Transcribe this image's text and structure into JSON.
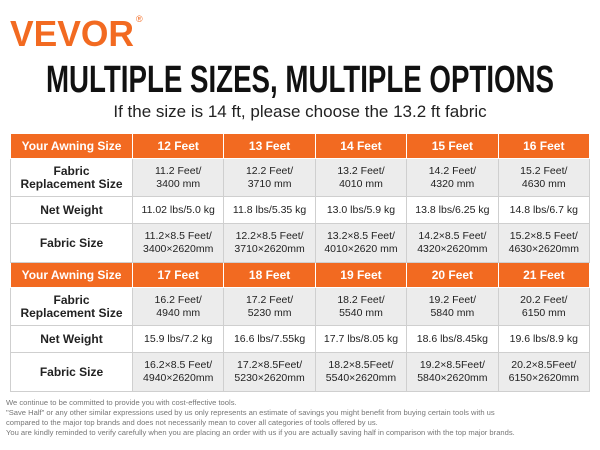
{
  "brand": "VEVOR",
  "brand_mark": "®",
  "header": {
    "title": "MULTIPLE SIZES, MULTIPLE OPTIONS",
    "subtitle": "If the size is 14 ft, please choose the 13.2 ft fabric"
  },
  "table": {
    "sections": [
      {
        "header": [
          "Your Awning Size",
          "12 Feet",
          "13 Feet",
          "14 Feet",
          "15 Feet",
          "16 Feet"
        ],
        "rows": [
          [
            "Fabric\nReplacement Size",
            "11.2 Feet/\n3400 mm",
            "12.2 Feet/\n3710 mm",
            "13.2 Feet/\n4010 mm",
            "14.2 Feet/\n4320 mm",
            "15.2 Feet/\n4630 mm"
          ],
          [
            "Net Weight",
            "11.02 lbs/5.0 kg",
            "11.8 lbs/5.35 kg",
            "13.0 lbs/5.9 kg",
            "13.8 lbs/6.25 kg",
            "14.8 lbs/6.7 kg"
          ],
          [
            "Fabric Size",
            "11.2×8.5 Feet/\n3400×2620mm",
            "12.2×8.5 Feet/\n3710×2620mm",
            "13.2×8.5 Feet/\n4010×2620 mm",
            "14.2×8.5 Feet/\n4320×2620mm",
            "15.2×8.5 Feet/\n4630×2620mm"
          ]
        ]
      },
      {
        "header": [
          "Your Awning Size",
          "17 Feet",
          "18 Feet",
          "19 Feet",
          "20 Feet",
          "21 Feet"
        ],
        "rows": [
          [
            "Fabric\nReplacement Size",
            "16.2 Feet/\n4940 mm",
            "17.2 Feet/\n5230 mm",
            "18.2 Feet/\n5540 mm",
            "19.2 Feet/\n5840 mm",
            "20.2 Feet/\n6150 mm"
          ],
          [
            "Net Weight",
            "15.9 lbs/7.2 kg",
            "16.6 lbs/7.55kg",
            "17.7 lbs/8.05 kg",
            "18.6 lbs/8.45kg",
            "19.6 lbs/8.9 kg"
          ],
          [
            "Fabric Size",
            "16.2×8.5 Feet/\n4940×2620mm",
            "17.2×8.5Feet/\n5230×2620mm",
            "18.2×8.5Feet/\n5540×2620mm",
            "19.2×8.5Feet/\n5840×2620mm",
            "20.2×8.5Feet/\n6150×2620mm"
          ]
        ]
      }
    ]
  },
  "footer": [
    "We continue to be committed to provide you with cost-effective tools.",
    "\"Save Half\" or any other similar expressions used by us only represents an estimate of savings you might benefit from buying certain tools with us",
    "compared to the major top brands and does not necessarily mean to cover all categories of tools offered by us.",
    "You are kindly reminded to verify carefully when you are placing an order with us if you are actually saving half in comparison with the top major brands."
  ]
}
